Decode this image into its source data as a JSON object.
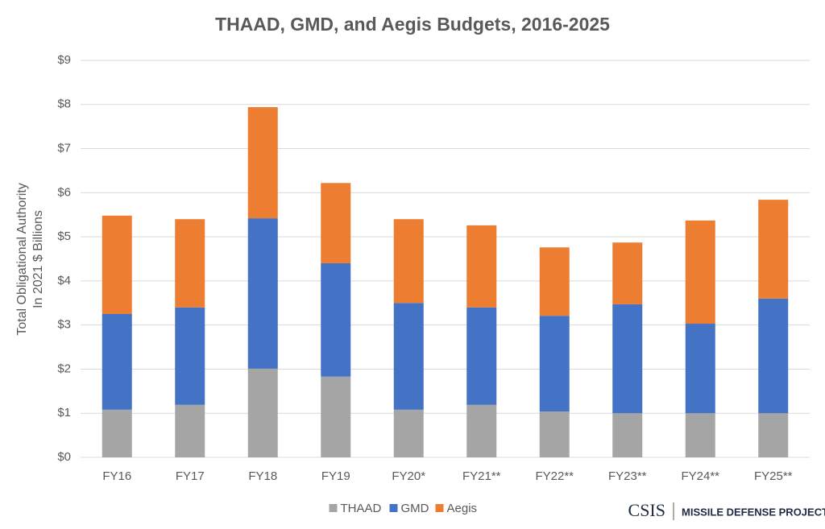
{
  "chart_data": {
    "type": "stacked_bar",
    "title": "THAAD, GMD, and Aegis Budgets, 2016-2025",
    "y_label": [
      "Total Obligational Authority",
      "In 2021 $ Billions"
    ],
    "categories": [
      "FY16",
      "FY17",
      "FY18",
      "FY19",
      "FY20*",
      "FY21**",
      "FY22**",
      "FY23**",
      "FY24**",
      "FY25**"
    ],
    "series": [
      {
        "name": "THAAD",
        "color": "#a5a5a5",
        "values": [
          1.08,
          1.19,
          2.01,
          1.83,
          1.08,
          1.19,
          1.04,
          1.0,
          1.0,
          1.0
        ]
      },
      {
        "name": "GMD",
        "color": "#4472c4",
        "values": [
          2.17,
          2.21,
          3.41,
          2.57,
          2.42,
          2.21,
          2.17,
          2.47,
          2.03,
          2.6
        ]
      },
      {
        "name": "Aegis",
        "color": "#ed7d31",
        "values": [
          2.23,
          2.0,
          2.52,
          1.82,
          1.9,
          1.86,
          1.55,
          1.4,
          2.34,
          2.24
        ]
      }
    ],
    "ylim": [
      0,
      9
    ],
    "yticks": [
      {
        "value": 0,
        "label": "$0"
      },
      {
        "value": 1,
        "label": "$1"
      },
      {
        "value": 2,
        "label": "$2"
      },
      {
        "value": 3,
        "label": "$3"
      },
      {
        "value": 4,
        "label": "$4"
      },
      {
        "value": 5,
        "label": "$5"
      },
      {
        "value": 6,
        "label": "$6"
      },
      {
        "value": 7,
        "label": "$7"
      },
      {
        "value": 8,
        "label": "$8"
      },
      {
        "value": 9,
        "label": "$9"
      }
    ],
    "grid": true,
    "legend": "bottom",
    "logo": "CSIS",
    "logo_subtitle": "MISSILE DEFENSE PROJECT"
  }
}
